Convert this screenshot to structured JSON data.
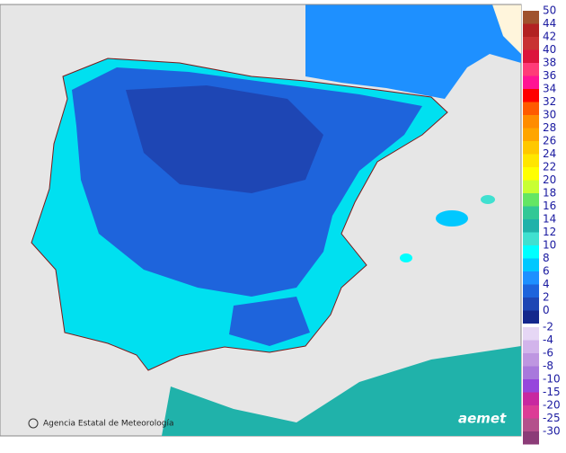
{
  "credit": "Agencia Estatal de Meteorología",
  "logo": "aemet",
  "legend": [
    {
      "label": 50,
      "color": "#a0522d"
    },
    {
      "label": 44,
      "color": "#b22222"
    },
    {
      "label": 42,
      "color": "#c83232"
    },
    {
      "label": 40,
      "color": "#dc143c"
    },
    {
      "label": 38,
      "color": "#ff3c78"
    },
    {
      "label": 36,
      "color": "#ff1493"
    },
    {
      "label": 34,
      "color": "#ff0000"
    },
    {
      "label": 32,
      "color": "#ff5a00"
    },
    {
      "label": 30,
      "color": "#ff8c00"
    },
    {
      "label": 28,
      "color": "#ffa500"
    },
    {
      "label": 26,
      "color": "#ffc800"
    },
    {
      "label": 24,
      "color": "#ffe600"
    },
    {
      "label": 22,
      "color": "#ffff00"
    },
    {
      "label": 20,
      "color": "#c8ff32"
    },
    {
      "label": 18,
      "color": "#64e664"
    },
    {
      "label": 16,
      "color": "#32c896"
    },
    {
      "label": 14,
      "color": "#20b2aa"
    },
    {
      "label": 12,
      "color": "#40e0d0"
    },
    {
      "label": 10,
      "color": "#00ffff"
    },
    {
      "label": 8,
      "color": "#00c8ff"
    },
    {
      "label": 6,
      "color": "#1e90ff"
    },
    {
      "label": 4,
      "color": "#1e64dc"
    },
    {
      "label": 2,
      "color": "#1e46b4"
    },
    {
      "label": 0,
      "color": "#14288c"
    },
    {
      "label": -2,
      "color": "#e6d7f5"
    },
    {
      "label": -4,
      "color": "#d2b4eb"
    },
    {
      "label": -6,
      "color": "#be96e1"
    },
    {
      "label": -8,
      "color": "#a878dc"
    },
    {
      "label": -10,
      "color": "#9646dc"
    },
    {
      "label": -15,
      "color": "#c828a0"
    },
    {
      "label": -20,
      "color": "#dc3c96"
    },
    {
      "label": -25,
      "color": "#b4508c"
    },
    {
      "label": -30,
      "color": "#8c3c78"
    }
  ]
}
